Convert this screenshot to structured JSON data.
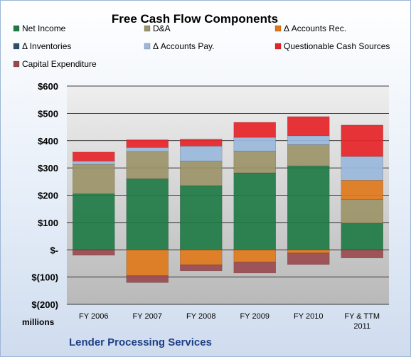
{
  "chart_data": {
    "type": "bar",
    "stacked": true,
    "title": "Free Cash Flow Components",
    "units_label": "millions",
    "company_label": "Lender Processing Services",
    "categories": [
      "FY 2006",
      "FY 2007",
      "FY 2008",
      "FY 2009",
      "FY 2010",
      "FY & TTM 2011"
    ],
    "ylim": [
      -200,
      600
    ],
    "yticks": [
      -200,
      -100,
      0,
      100,
      200,
      300,
      400,
      500,
      600
    ],
    "ytick_labels": [
      "$(200)",
      "$(100)",
      "$-",
      "$100",
      "$200",
      "$300",
      "$400",
      "$500",
      "$600"
    ],
    "grid": true,
    "legend_position": "top",
    "series": [
      {
        "name": "Net Income",
        "color": "#1f7a45",
        "values": [
          205,
          260,
          235,
          282,
          307,
          97
        ]
      },
      {
        "name": "D&A",
        "color": "#9c9468",
        "values": [
          108,
          100,
          90,
          80,
          78,
          88
        ]
      },
      {
        "name": "Δ Accounts Rec.",
        "color": "#e0781c",
        "values": [
          0,
          -95,
          -55,
          -45,
          -12,
          70
        ]
      },
      {
        "name": "Δ Inventories",
        "color": "#2f4e6e",
        "values": [
          0,
          0,
          0,
          0,
          0,
          0
        ]
      },
      {
        "name": "Δ Accounts Pay.",
        "color": "#9ab8dc",
        "values": [
          12,
          15,
          55,
          50,
          33,
          87
        ]
      },
      {
        "name": "Questionable Cash Sources",
        "color": "#e62428",
        "values": [
          33,
          28,
          25,
          55,
          70,
          115
        ]
      },
      {
        "name": "Capital Expenditure",
        "color": "#9a4a4e",
        "values": [
          -20,
          -25,
          -22,
          -40,
          -42,
          -30
        ]
      }
    ]
  }
}
